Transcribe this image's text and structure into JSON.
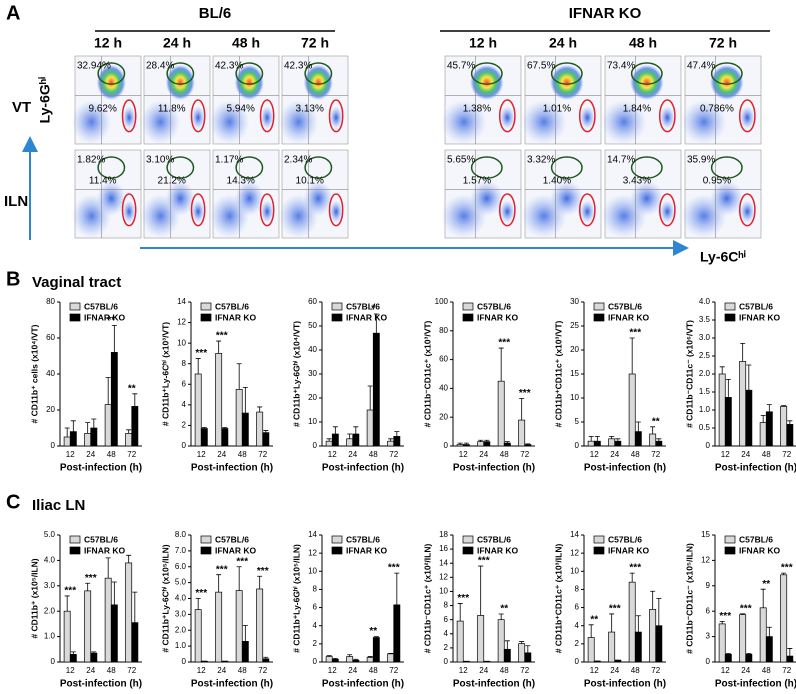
{
  "panels": {
    "a": "A",
    "b": "B",
    "c": "C",
    "b_title": "Vaginal tract",
    "c_title": "Iliac LN"
  },
  "panel_a": {
    "groups": [
      "BL/6",
      "IFNAR KO"
    ],
    "times": [
      "12 h",
      "24 h",
      "48 h",
      "72 h",
      "12 h",
      "24 h",
      "48 h",
      "72 h"
    ],
    "y_axis": "Ly-6Gʰⁱ",
    "x_axis": "Ly-6Cʰⁱ",
    "rows": [
      {
        "label": "VT",
        "plots": [
          {
            "upper": "32.94%",
            "lower": "9.62%"
          },
          {
            "upper": "28.4%",
            "lower": "11.8%"
          },
          {
            "upper": "42.3%",
            "lower": "5.94%"
          },
          {
            "upper": "42.3%",
            "lower": "3.13%"
          },
          {
            "upper": "45.7%",
            "lower": "1.38%"
          },
          {
            "upper": "67.5%",
            "lower": "1.01%"
          },
          {
            "upper": "73.4%",
            "lower": "1.84%"
          },
          {
            "upper": "47.4%",
            "lower": "0.786%"
          }
        ]
      },
      {
        "label": "ILN",
        "plots": [
          {
            "upper": "1.82%",
            "lower": "11.4%"
          },
          {
            "upper": "3.10%",
            "lower": "21.2%"
          },
          {
            "upper": "1.17%",
            "lower": "14.3%"
          },
          {
            "upper": "2.34%",
            "lower": "10.1%"
          },
          {
            "upper": "5.65%",
            "lower": "1.57%"
          },
          {
            "upper": "3.32%",
            "lower": "1.40%"
          },
          {
            "upper": "14.7%",
            "lower": "3.43%"
          },
          {
            "upper": "35.9%",
            "lower": "0.95%"
          }
        ]
      }
    ]
  },
  "chart_data": [
    {
      "type": "bar",
      "ylabel": "# CD11b⁺ cells (x10⁴/VT)",
      "xlabel": "Post-infection (h)",
      "categories": [
        "12",
        "24",
        "48",
        "72"
      ],
      "ylim": [
        0,
        80
      ],
      "yticks": [
        0,
        20,
        40,
        60,
        80
      ],
      "series": [
        {
          "name": "C57BL/6",
          "color": "#d9d9d9",
          "values": [
            5,
            7,
            23,
            7
          ],
          "errors": [
            5,
            6,
            15,
            2
          ]
        },
        {
          "name": "IFNAR KO",
          "color": "#000000",
          "values": [
            8,
            10,
            52,
            22
          ],
          "errors": [
            6,
            5,
            15,
            7
          ]
        }
      ],
      "significance": [
        null,
        null,
        "**",
        "**"
      ]
    },
    {
      "type": "bar",
      "ylabel": "# CD11b⁺Ly-6Cʰⁱ (x10³/VT)",
      "xlabel": "Post-infection (h)",
      "categories": [
        "12",
        "24",
        "48",
        "72"
      ],
      "ylim": [
        0,
        14
      ],
      "yticks": [
        0,
        2,
        4,
        6,
        8,
        10,
        12,
        14
      ],
      "series": [
        {
          "name": "C57BL/6",
          "color": "#d9d9d9",
          "values": [
            7,
            9,
            5.5,
            3.3
          ],
          "errors": [
            1.5,
            1.2,
            2.5,
            0.5
          ]
        },
        {
          "name": "IFNAR KO",
          "color": "#000000",
          "values": [
            1.7,
            1.7,
            3.2,
            1.3
          ],
          "errors": [
            0.1,
            0.1,
            2.5,
            0.2
          ]
        }
      ],
      "significance": [
        "***",
        "***",
        null,
        null
      ]
    },
    {
      "type": "bar",
      "ylabel": "# CD11b⁺Ly-6Gʰⁱ (x10⁴/VT)",
      "xlabel": "Post-infection (h)",
      "categories": [
        "12",
        "24",
        "48",
        "72"
      ],
      "ylim": [
        0,
        60
      ],
      "yticks": [
        0,
        10,
        20,
        30,
        40,
        50,
        60
      ],
      "series": [
        {
          "name": "C57BL/6",
          "color": "#d9d9d9",
          "values": [
            2,
            3,
            15,
            2
          ],
          "errors": [
            1,
            2,
            10,
            1
          ]
        },
        {
          "name": "IFNAR KO",
          "color": "#000000",
          "values": [
            5,
            5,
            47,
            4
          ],
          "errors": [
            3,
            3,
            8,
            2
          ]
        }
      ],
      "significance": [
        null,
        null,
        "*",
        null
      ]
    },
    {
      "type": "bar",
      "ylabel": "# CD11b⁻CD11c⁺ (x10³/VT)",
      "xlabel": "Post-infection (h)",
      "categories": [
        "12",
        "24",
        "48",
        "72"
      ],
      "ylim": [
        0,
        100
      ],
      "yticks": [
        0,
        20,
        40,
        60,
        80,
        100
      ],
      "series": [
        {
          "name": "C57BL/6",
          "color": "#d9d9d9",
          "values": [
            1,
            3,
            45,
            18
          ],
          "errors": [
            1,
            1,
            23,
            15
          ]
        },
        {
          "name": "IFNAR KO",
          "color": "#000000",
          "values": [
            1,
            3,
            2,
            1
          ],
          "errors": [
            1,
            1,
            1,
            0.5
          ]
        }
      ],
      "significance": [
        null,
        null,
        "***",
        "***"
      ]
    },
    {
      "type": "bar",
      "ylabel": "# CD11b⁺CD11c⁺ (x10³/VT)",
      "xlabel": "Post-infection (h)",
      "categories": [
        "12",
        "24",
        "48",
        "72"
      ],
      "ylim": [
        0,
        30
      ],
      "yticks": [
        0,
        5,
        10,
        15,
        20,
        25,
        30
      ],
      "series": [
        {
          "name": "C57BL/6",
          "color": "#d9d9d9",
          "values": [
            1,
            1.5,
            15,
            2.5
          ],
          "errors": [
            1,
            0.5,
            7.5,
            1.5
          ]
        },
        {
          "name": "IFNAR KO",
          "color": "#000000",
          "values": [
            1,
            1,
            3,
            1
          ],
          "errors": [
            1,
            0.5,
            2,
            0.5
          ]
        }
      ],
      "significance": [
        null,
        null,
        "***",
        "**"
      ]
    },
    {
      "type": "bar",
      "ylabel": "# CD11b⁻CD11c⁻ (x10⁶/VT)",
      "xlabel": "Post-infection (h)",
      "categories": [
        "12",
        "24",
        "48",
        "72"
      ],
      "ylim": [
        0,
        4
      ],
      "yticks": [
        0,
        0.5,
        {
          "value": 1,
          "label": "1.0"
        },
        1.5,
        {
          "value": 2,
          "label": "2.0"
        },
        2.5,
        {
          "value": 3,
          "label": "3.0"
        },
        3.5,
        {
          "value": 4,
          "label": "4.0"
        }
      ],
      "series": [
        {
          "name": "C57BL/6",
          "color": "#d9d9d9",
          "values": [
            2.0,
            2.35,
            0.65,
            1.1
          ],
          "errors": [
            0.2,
            0.5,
            0.2,
            0.02
          ]
        },
        {
          "name": "IFNAR KO",
          "color": "#000000",
          "values": [
            1.35,
            1.55,
            0.95,
            0.6
          ],
          "errors": [
            0.5,
            0.7,
            0.2,
            0.1
          ]
        }
      ],
      "significance": [
        null,
        null,
        null,
        null
      ]
    },
    {
      "type": "bar",
      "ylabel": "# CD11b⁺ (x10⁵/ILN)",
      "xlabel": "Post-infection (h)",
      "categories": [
        "12",
        "24",
        "48",
        "72"
      ],
      "ylim": [
        0,
        5
      ],
      "yticks": [
        0,
        {
          "value": 1,
          "label": "1.0"
        },
        {
          "value": 2,
          "label": "2.0"
        },
        {
          "value": 3,
          "label": "3.0"
        },
        {
          "value": 4,
          "label": "4.0"
        },
        {
          "value": 5,
          "label": "5.0"
        }
      ],
      "series": [
        {
          "name": "C57BL/6",
          "color": "#d9d9d9",
          "values": [
            2.0,
            2.8,
            3.3,
            3.9
          ],
          "errors": [
            0.6,
            0.3,
            0.8,
            0.3
          ]
        },
        {
          "name": "IFNAR KO",
          "color": "#000000",
          "values": [
            0.3,
            0.35,
            2.25,
            1.55
          ],
          "errors": [
            0.1,
            0.05,
            0.9,
            1.2
          ]
        }
      ],
      "significance": [
        "***",
        "***",
        null,
        null
      ]
    },
    {
      "type": "bar",
      "ylabel": "# CD11b⁺Ly-6Cʰⁱ (x10⁵/ILN)",
      "xlabel": "Post-infection (h)",
      "categories": [
        "12",
        "24",
        "48",
        "72"
      ],
      "ylim": [
        0,
        8
      ],
      "yticks": [
        0,
        {
          "value": 1,
          "label": "1.0"
        },
        {
          "value": 2,
          "label": "2.0"
        },
        {
          "value": 3,
          "label": "3.0"
        },
        {
          "value": 4,
          "label": "4.0"
        },
        {
          "value": 5,
          "label": "5.0"
        },
        {
          "value": 6,
          "label": "6.0"
        },
        {
          "value": 7,
          "label": "7.0"
        },
        {
          "value": 8,
          "label": "8.0"
        }
      ],
      "series": [
        {
          "name": "C57BL/6",
          "color": "#d9d9d9",
          "values": [
            3.3,
            4.4,
            4.5,
            4.6
          ],
          "errors": [
            0.7,
            1.1,
            1.5,
            0.8
          ]
        },
        {
          "name": "IFNAR KO",
          "color": "#000000",
          "values": [
            0.05,
            0.05,
            1.3,
            0.2
          ],
          "errors": [
            0,
            0,
            1,
            0.1
          ]
        }
      ],
      "significance": [
        "***",
        "***",
        "***",
        "***"
      ]
    },
    {
      "type": "bar",
      "ylabel": "# CD11b⁺Ly-6Gʰⁱ (x10⁵/ILN)",
      "xlabel": "Post-infection (h)",
      "categories": [
        "12",
        "24",
        "48",
        "72"
      ],
      "ylim": [
        0,
        14
      ],
      "yticks": [
        0,
        2,
        4,
        6,
        8,
        10,
        12,
        14
      ],
      "series": [
        {
          "name": "C57BL/6",
          "color": "#d9d9d9",
          "values": [
            0.6,
            0.6,
            0.5,
            0.9
          ],
          "errors": [
            0.1,
            0.2,
            0.1,
            0.05
          ]
        },
        {
          "name": "IFNAR KO",
          "color": "#000000",
          "values": [
            0.3,
            0.2,
            2.7,
            6.3
          ],
          "errors": [
            0.1,
            0.1,
            0.1,
            3.5
          ]
        }
      ],
      "significance": [
        null,
        null,
        "**",
        "***"
      ]
    },
    {
      "type": "bar",
      "ylabel": "# CD11b⁻CD11c⁺ (x10²/ILN)",
      "xlabel": "Post-infection (h)",
      "categories": [
        "12",
        "24",
        "48",
        "72"
      ],
      "ylim": [
        0,
        18
      ],
      "yticks": [
        0,
        2,
        4,
        6,
        8,
        10,
        12,
        14,
        16,
        18
      ],
      "series": [
        {
          "name": "C57BL/6",
          "color": "#d9d9d9",
          "values": [
            5.8,
            6.6,
            6,
            2.6
          ],
          "errors": [
            2.5,
            7,
            0.8,
            0.3
          ]
        },
        {
          "name": "IFNAR KO",
          "color": "#000000",
          "values": [
            0.1,
            0.1,
            1.8,
            1.3
          ],
          "errors": [
            0,
            0,
            1.2,
            1
          ]
        }
      ],
      "significance": [
        "***",
        "***",
        "**",
        null
      ]
    },
    {
      "type": "bar",
      "ylabel": "# CD11b⁺CD11c⁺ (x10³/ILN)",
      "xlabel": "Post-infection (h)",
      "categories": [
        "12",
        "24",
        "48",
        "72"
      ],
      "ylim": [
        0,
        14
      ],
      "yticks": [
        0,
        2,
        4,
        6,
        8,
        10,
        12,
        14
      ],
      "series": [
        {
          "name": "C57BL/6",
          "color": "#d9d9d9",
          "values": [
            2.7,
            3.3,
            8.8,
            5.8
          ],
          "errors": [
            1.4,
            2,
            1,
            2
          ]
        },
        {
          "name": "IFNAR KO",
          "color": "#000000",
          "values": [
            0.1,
            0.2,
            3.3,
            4
          ],
          "errors": [
            0,
            0,
            1.8,
            3
          ]
        }
      ],
      "significance": [
        "**",
        "***",
        "***",
        null
      ]
    },
    {
      "type": "bar",
      "ylabel": "# CD11b⁻CD11c⁻ (x10⁵/ILN)",
      "xlabel": "Post-infection (h)",
      "categories": [
        "12",
        "24",
        "48",
        "72"
      ],
      "ylim": [
        0,
        15
      ],
      "yticks": [
        0,
        3,
        6,
        9,
        12,
        15
      ],
      "series": [
        {
          "name": "C57BL/6",
          "color": "#d9d9d9",
          "values": [
            4.5,
            5.6,
            6.4,
            10.3
          ],
          "errors": [
            0.3,
            0.1,
            2.2,
            0.2
          ]
        },
        {
          "name": "IFNAR KO",
          "color": "#000000",
          "values": [
            0.9,
            0.9,
            3.0,
            0.7
          ],
          "errors": [
            0.1,
            0.1,
            1.1,
            0.9
          ]
        }
      ],
      "significance": [
        "***",
        "***",
        "**",
        "***"
      ]
    }
  ]
}
